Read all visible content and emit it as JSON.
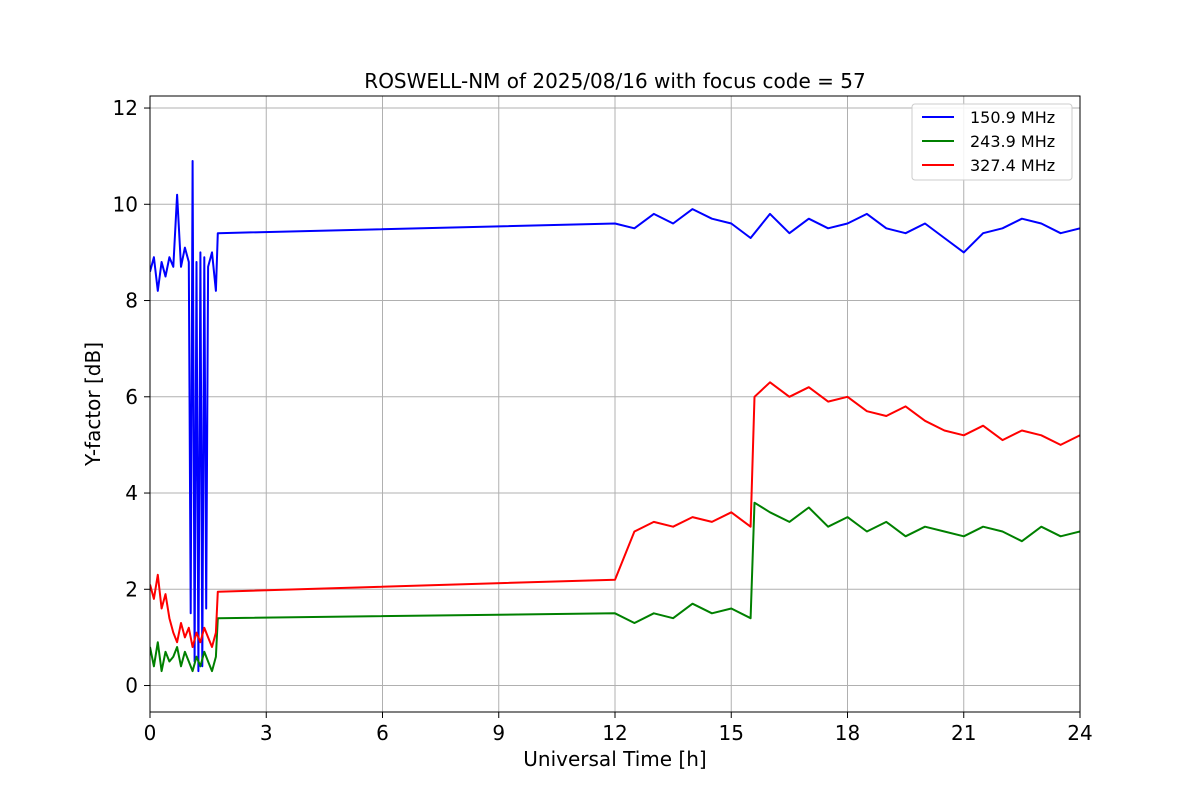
{
  "chart_data": {
    "type": "line",
    "title": "ROSWELL-NM of 2025/08/16 with focus code = 57",
    "xlabel": "Universal Time [h]",
    "ylabel": "Y-factor [dB]",
    "xlim": [
      0,
      24
    ],
    "ylim": [
      -0.55,
      12.25
    ],
    "xticks": [
      0,
      3,
      6,
      9,
      12,
      15,
      18,
      21,
      24
    ],
    "yticks": [
      0,
      2,
      4,
      6,
      8,
      10,
      12
    ],
    "grid": true,
    "legend_position": "top-right",
    "series": [
      {
        "name": "150.9 MHz",
        "color": "#0000ff",
        "x": [
          0.0,
          0.1,
          0.2,
          0.3,
          0.4,
          0.5,
          0.6,
          0.7,
          0.8,
          0.9,
          1.0,
          1.05,
          1.1,
          1.15,
          1.2,
          1.25,
          1.3,
          1.35,
          1.4,
          1.45,
          1.5,
          1.6,
          1.7,
          1.75,
          12.0,
          12.5,
          13.0,
          13.5,
          14.0,
          14.5,
          15.0,
          15.5,
          16.0,
          16.5,
          17.0,
          17.5,
          18.0,
          18.5,
          19.0,
          19.5,
          20.0,
          20.5,
          21.0,
          21.5,
          22.0,
          22.5,
          23.0,
          23.5,
          24.0
        ],
        "y": [
          8.6,
          8.9,
          8.2,
          8.8,
          8.5,
          8.9,
          8.7,
          10.2,
          8.7,
          9.1,
          8.8,
          1.5,
          10.9,
          0.5,
          8.8,
          0.3,
          9.0,
          0.4,
          8.9,
          1.6,
          8.7,
          9.0,
          8.2,
          9.4,
          9.6,
          9.5,
          9.8,
          9.6,
          9.9,
          9.7,
          9.6,
          9.3,
          9.8,
          9.4,
          9.7,
          9.5,
          9.6,
          9.8,
          9.5,
          9.4,
          9.6,
          9.3,
          9.0,
          9.4,
          9.5,
          9.7,
          9.6,
          9.4,
          9.5
        ]
      },
      {
        "name": "243.9 MHz",
        "color": "#008000",
        "x": [
          0.0,
          0.1,
          0.2,
          0.3,
          0.4,
          0.5,
          0.6,
          0.7,
          0.8,
          0.9,
          1.0,
          1.1,
          1.2,
          1.3,
          1.4,
          1.5,
          1.6,
          1.7,
          1.75,
          12.0,
          12.5,
          13.0,
          13.5,
          14.0,
          14.5,
          15.0,
          15.5,
          15.6,
          16.0,
          16.5,
          17.0,
          17.5,
          18.0,
          18.5,
          19.0,
          19.5,
          20.0,
          20.5,
          21.0,
          21.5,
          22.0,
          22.5,
          23.0,
          23.5,
          24.0
        ],
        "y": [
          0.8,
          0.4,
          0.9,
          0.3,
          0.7,
          0.5,
          0.6,
          0.8,
          0.4,
          0.7,
          0.5,
          0.3,
          0.6,
          0.4,
          0.7,
          0.5,
          0.3,
          0.6,
          1.4,
          1.5,
          1.3,
          1.5,
          1.4,
          1.7,
          1.5,
          1.6,
          1.4,
          3.8,
          3.6,
          3.4,
          3.7,
          3.3,
          3.5,
          3.2,
          3.4,
          3.1,
          3.3,
          3.2,
          3.1,
          3.3,
          3.2,
          3.0,
          3.3,
          3.1,
          3.2
        ]
      },
      {
        "name": "327.4 MHz",
        "color": "#ff0000",
        "x": [
          0.0,
          0.1,
          0.2,
          0.3,
          0.4,
          0.5,
          0.6,
          0.7,
          0.8,
          0.9,
          1.0,
          1.1,
          1.2,
          1.3,
          1.4,
          1.5,
          1.6,
          1.7,
          1.75,
          12.0,
          12.5,
          13.0,
          13.5,
          14.0,
          14.5,
          15.0,
          15.5,
          15.6,
          16.0,
          16.5,
          17.0,
          17.5,
          18.0,
          18.5,
          19.0,
          19.5,
          20.0,
          20.5,
          21.0,
          21.5,
          22.0,
          22.5,
          23.0,
          23.5,
          24.0
        ],
        "y": [
          2.1,
          1.8,
          2.3,
          1.6,
          1.9,
          1.4,
          1.1,
          0.9,
          1.3,
          1.0,
          1.2,
          0.8,
          1.1,
          0.9,
          1.2,
          1.0,
          0.8,
          1.1,
          1.95,
          2.2,
          3.2,
          3.4,
          3.3,
          3.5,
          3.4,
          3.6,
          3.3,
          6.0,
          6.3,
          6.0,
          6.2,
          5.9,
          6.0,
          5.7,
          5.6,
          5.8,
          5.5,
          5.3,
          5.2,
          5.4,
          5.1,
          5.3,
          5.2,
          5.0,
          5.2
        ]
      }
    ]
  }
}
